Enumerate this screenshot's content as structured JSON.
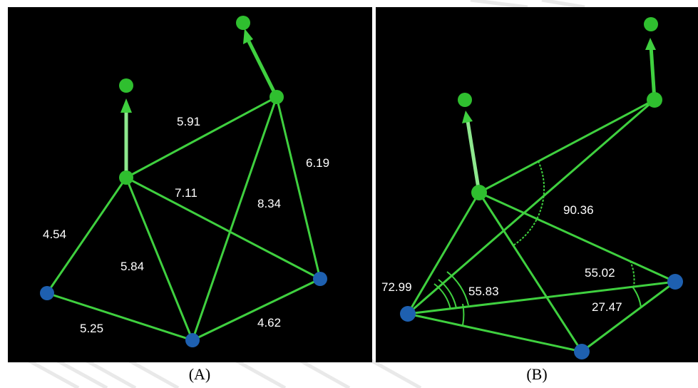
{
  "colors": {
    "background": "#000000",
    "bond": "#3fd03f",
    "green_atom": "#2fbf2f",
    "blue_atom": "#1e60b0",
    "label": "#ffffff",
    "watermark": "#c8c8c8"
  },
  "panel_a": {
    "caption": "(A)",
    "distance_labels": [
      "5.91",
      "6.19",
      "7.11",
      "8.34",
      "4.54",
      "5.84",
      "5.25",
      "4.62"
    ]
  },
  "panel_b": {
    "caption": "(B)",
    "angle_labels": [
      "90.36",
      "72.99",
      "55.83",
      "55.02",
      "27.47"
    ]
  }
}
